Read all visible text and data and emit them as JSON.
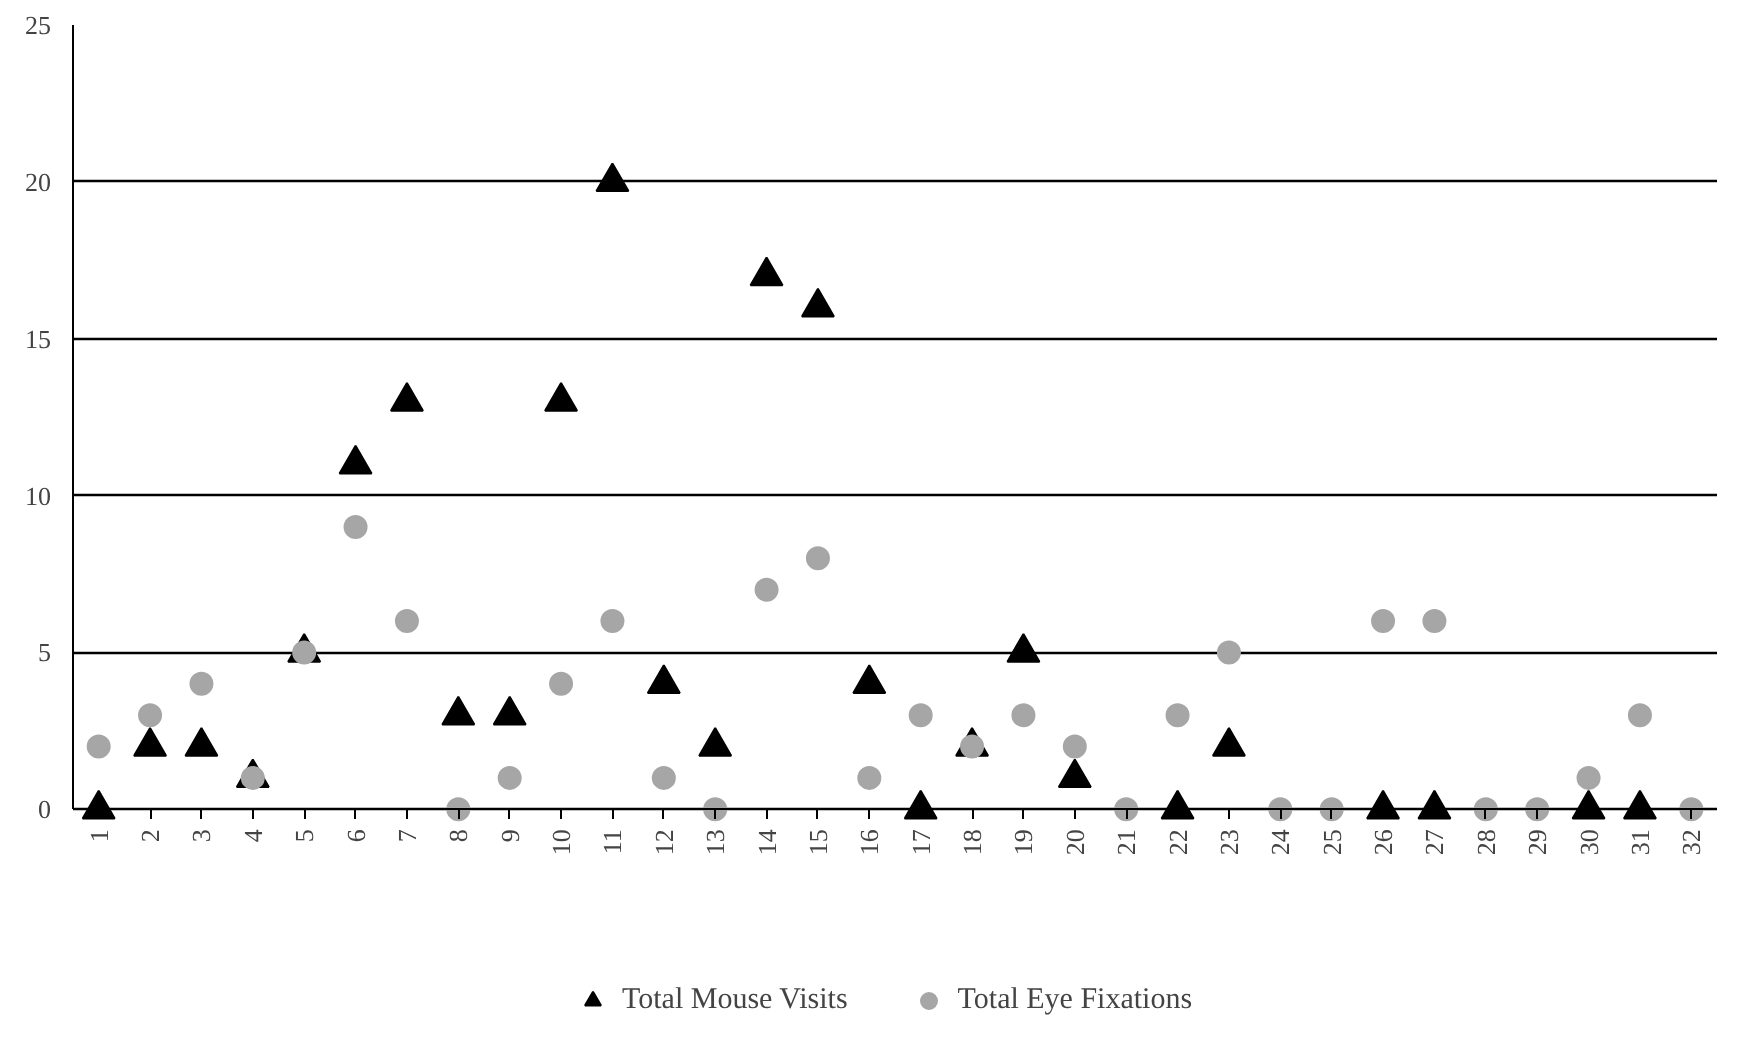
{
  "chart_data": {
    "type": "scatter",
    "categories": [
      "1",
      "2",
      "3",
      "4",
      "5",
      "6",
      "7",
      "8",
      "9",
      "10",
      "11",
      "12",
      "13",
      "14",
      "15",
      "16",
      "17",
      "18",
      "19",
      "20",
      "21",
      "22",
      "23",
      "24",
      "25",
      "26",
      "27",
      "28",
      "29",
      "30",
      "31",
      "32"
    ],
    "series": [
      {
        "name": "Total Mouse Visits",
        "color": "#000000",
        "marker": "triangle",
        "values": [
          0,
          2,
          2,
          1,
          5,
          11,
          13,
          3,
          3,
          13,
          20,
          4,
          2,
          17,
          16,
          4,
          0,
          2,
          5,
          1,
          null,
          0,
          2,
          null,
          null,
          0,
          0,
          null,
          null,
          0,
          0,
          null
        ]
      },
      {
        "name": "Total Eye Fixations",
        "color": "#a6a6a6",
        "marker": "circle",
        "values": [
          2,
          3,
          4,
          1,
          5,
          9,
          6,
          0,
          1,
          4,
          6,
          1,
          0,
          7,
          8,
          1,
          3,
          2,
          3,
          2,
          0,
          3,
          5,
          0,
          0,
          6,
          6,
          0,
          0,
          1,
          3,
          0
        ]
      }
    ],
    "ylim": [
      0,
      25
    ],
    "yticks": [
      0,
      5,
      10,
      15,
      20,
      25
    ],
    "grid": "y",
    "legend": "bottom"
  }
}
